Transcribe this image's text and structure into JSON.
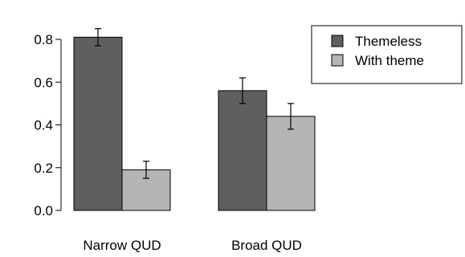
{
  "chart_data": {
    "type": "bar",
    "title": "",
    "xlabel": "",
    "ylabel": "",
    "ylim": [
      0,
      0.8
    ],
    "yticks": [
      "0.0",
      "0.2",
      "0.4",
      "0.6",
      "0.8"
    ],
    "grid": false,
    "legend_position": "top-right",
    "categories": [
      "Narrow QUD",
      "Broad QUD"
    ],
    "series": [
      {
        "name": "Themeless",
        "color": "#5f5f5f",
        "values": [
          0.81,
          0.56
        ],
        "error_low": [
          0.77,
          0.5
        ],
        "error_high": [
          0.85,
          0.62
        ]
      },
      {
        "name": "With theme",
        "color": "#b4b4b4",
        "values": [
          0.19,
          0.44
        ],
        "error_low": [
          0.15,
          0.38
        ],
        "error_high": [
          0.23,
          0.5
        ]
      }
    ]
  }
}
